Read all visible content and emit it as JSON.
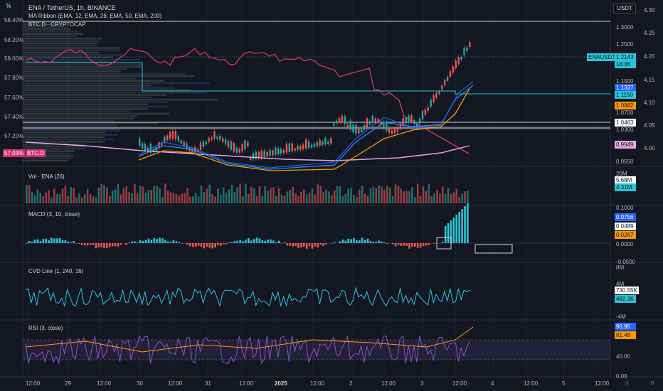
{
  "header": {
    "symbol_line": "ENA / TetherUS, 1h, BINANCE",
    "ribbon_line": "MA Ribbon (EMA, 12, EMA, 26, EMA, 50, EMA, 200)",
    "btcd_line": "BTC.D · CRYPTOCAP",
    "pct_button": "%",
    "currency_button": "USDT"
  },
  "left_axis": {
    "ticks": [
      "58.40%",
      "58.20%",
      "58.00%",
      "57.80%",
      "57.60%",
      "57.40%",
      "57.20%"
    ],
    "btcd_label": "57.03%",
    "btcd_tag": "BTC.D"
  },
  "right_axis": {
    "ticks": [
      "4.30",
      "4.25",
      "4.20",
      "4.15",
      "4.10",
      "4.05",
      "4.00"
    ],
    "price_ticks": [
      "1.3000",
      "1.2500",
      "1.1500",
      "1.0700",
      "1.0300",
      "0.9550"
    ],
    "symbol_tag": "ENAUSDT",
    "last_price": "1.2143",
    "countdown": "18:36",
    "ema_values": [
      "1.1337",
      "1.1150",
      "1.0882",
      "1.0463"
    ],
    "ema200_value": "0.9949"
  },
  "volume": {
    "title": "Vol · ENA (26)",
    "top_tick": "20M",
    "values": [
      "5.68M",
      "4.31M"
    ]
  },
  "macd": {
    "title": "MACD (3, 10, close)",
    "ticks": [
      "0.1000",
      "0.0000",
      "-0.0500"
    ],
    "values": [
      "0.0756",
      "0.0489",
      "0.0267"
    ]
  },
  "cvd": {
    "title": "CVD Line (1, 240, 16)",
    "ticks": [
      "8M",
      "4M",
      "-4M"
    ],
    "values": [
      "730.55K",
      "482.3K"
    ]
  },
  "rsi": {
    "title": "RSI (3, close)",
    "ticks": [
      "40.00",
      "0.00"
    ],
    "values": [
      "96.95",
      "81.48"
    ]
  },
  "x_axis": {
    "ticks": [
      "12:00",
      "29",
      "12:00",
      "30",
      "12:00",
      "31",
      "12:00",
      "2025",
      "12:00",
      "2",
      "12:00",
      "3",
      "12:00",
      "4",
      "12:00",
      "5",
      "12:00"
    ]
  },
  "colors": {
    "bg": "#131722",
    "up": "#26a69a",
    "down": "#ef5350",
    "btcd": "#d4336f",
    "ema12": "#2962ff",
    "ema26": "#2196f3",
    "ema50": "#ff9800",
    "ema200": "#e8a6e6"
  }
}
